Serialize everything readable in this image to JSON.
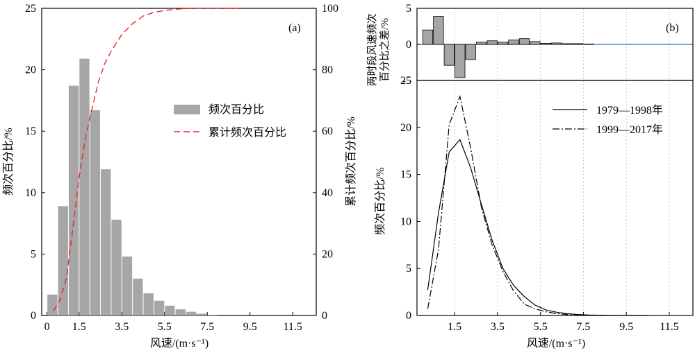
{
  "chart_data": [
    {
      "id": "a",
      "type": "bar",
      "panel_label": "(a)",
      "xlabel": "风速/(m·s⁻¹)",
      "ylabel": "频次百分比/%",
      "y2label": "累计频次百分比/%",
      "xticks": [
        "0",
        "1.5",
        "3.5",
        "5.5",
        "7.5",
        "9.5",
        "11.5"
      ],
      "xlim": [
        -0.25,
        12.6
      ],
      "ylim": [
        0,
        25
      ],
      "yticks": [
        0,
        5,
        10,
        15,
        20,
        25
      ],
      "y2lim": [
        0,
        100
      ],
      "y2ticks": [
        0,
        20,
        40,
        60,
        80,
        100
      ],
      "legend": {
        "bar_label": "频次百分比",
        "line_label": "累计频次百分比",
        "position": "center-right"
      },
      "bars": {
        "name": "频次百分比",
        "color": "#a6a6a6",
        "x": [
          0.25,
          0.75,
          1.25,
          1.75,
          2.25,
          2.75,
          3.25,
          3.75,
          4.25,
          4.75,
          5.25,
          5.75,
          6.25,
          6.75,
          7.25,
          7.75
        ],
        "values": [
          1.7,
          8.9,
          18.7,
          20.9,
          16.7,
          11.9,
          7.8,
          4.8,
          3.0,
          1.8,
          1.2,
          0.8,
          0.5,
          0.3,
          0.15,
          0.05
        ]
      },
      "cumulative": {
        "name": "累计频次百分比",
        "color": "#e8262a",
        "x": [
          0.3,
          0.6,
          0.9,
          1.2,
          1.5,
          1.8,
          2.1,
          2.4,
          2.7,
          3.0,
          3.5,
          4.0,
          4.5,
          5.0,
          5.5,
          6.0,
          6.5,
          7.0,
          7.5,
          8.0,
          9.0
        ],
        "values": [
          1.5,
          5,
          12,
          28,
          45,
          58,
          67,
          76,
          82,
          86,
          91.5,
          95,
          97.5,
          98.7,
          99.3,
          99.7,
          99.9,
          100,
          100,
          100,
          100
        ]
      }
    },
    {
      "id": "b-top",
      "type": "bar",
      "panel_label": "(b)",
      "ylabel_lines": [
        "两时段风速频次",
        "百分比之差/%"
      ],
      "ylim": [
        -5,
        5
      ],
      "yticks": [
        -5,
        0,
        5
      ],
      "grid": true,
      "bars": {
        "color": "#a6a6a6",
        "x": [
          0.25,
          0.75,
          1.25,
          1.75,
          2.25,
          2.75,
          3.25,
          3.75,
          4.25,
          4.75,
          5.25,
          5.75,
          6.25,
          6.75,
          7.25,
          7.75
        ],
        "values": [
          2.0,
          3.9,
          -2.9,
          -4.6,
          -2.1,
          0.3,
          0.5,
          0.3,
          0.6,
          0.8,
          0.4,
          0.15,
          0.2,
          0.1,
          0.1,
          0.05
        ]
      },
      "zero_line_color": "#3a66d6"
    },
    {
      "id": "b-bottom",
      "type": "line",
      "xlabel": "风速/(m·s⁻¹)",
      "ylabel": "频次百分比/%",
      "xticks": [
        "1.5",
        "3.5",
        "5.5",
        "7.5",
        "9.5",
        "11.5"
      ],
      "xlim": [
        -0.25,
        12.6
      ],
      "ylim": [
        0,
        25
      ],
      "yticks": [
        0,
        5,
        10,
        15,
        20,
        25
      ],
      "grid": true,
      "legend_position": "top-right",
      "series": [
        {
          "name": "1979—1998年",
          "style": "solid",
          "x": [
            0.25,
            0.75,
            1.25,
            1.75,
            2.25,
            2.75,
            3.25,
            3.75,
            4.25,
            4.75,
            5.25,
            5.75,
            6.25,
            6.75,
            7.25,
            7.75,
            8.5,
            9.5,
            10.5
          ],
          "values": [
            2.7,
            10.9,
            17.4,
            18.7,
            15.7,
            11.8,
            8.0,
            5.0,
            3.2,
            2.0,
            1.1,
            0.6,
            0.35,
            0.2,
            0.1,
            0.05,
            0.02,
            0.01,
            0.0
          ]
        },
        {
          "name": "1999—2017年",
          "style": "dashdot",
          "x": [
            0.25,
            0.75,
            1.25,
            1.75,
            2.25,
            2.75,
            3.25,
            3.75,
            4.25,
            4.75,
            5.25,
            5.75,
            6.25,
            6.75,
            7.25,
            7.75,
            8.5
          ],
          "values": [
            0.7,
            7.0,
            20.3,
            23.3,
            17.8,
            11.5,
            7.5,
            4.7,
            2.6,
            1.2,
            0.7,
            0.4,
            0.2,
            0.1,
            0.05,
            0.02,
            0.0
          ]
        }
      ]
    }
  ]
}
